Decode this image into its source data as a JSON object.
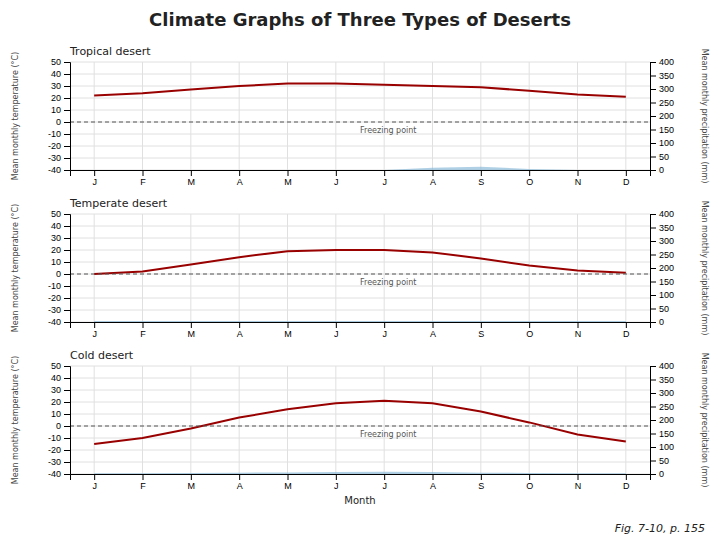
{
  "title": "Climate Graphs of Three Types of Deserts",
  "caption": "Fig. 7-10, p. 155",
  "chart_data": [
    {
      "type": "line",
      "title": "Tropical desert",
      "categories": [
        "J",
        "F",
        "M",
        "A",
        "M",
        "J",
        "J",
        "A",
        "S",
        "O",
        "N",
        "D"
      ],
      "ylabel": "Mean monthly temperature (°C)",
      "y2label": "Mean monthly precipitation (mm)",
      "ylim": [
        -40,
        50
      ],
      "yticks": [
        -40,
        -30,
        -20,
        -10,
        0,
        10,
        20,
        30,
        40,
        50
      ],
      "y2lim": [
        0,
        400
      ],
      "y2ticks": [
        0,
        50,
        100,
        150,
        200,
        250,
        300,
        350,
        400
      ],
      "grid": true,
      "series": [
        {
          "type": "area",
          "axis": "y2",
          "color": "#7ab0d4",
          "values": [
            0,
            0,
            0,
            0,
            0,
            0,
            0,
            8,
            12,
            4,
            0,
            0
          ]
        },
        {
          "type": "line",
          "axis": "y",
          "color": "#990000",
          "values": [
            22,
            24,
            27,
            30,
            32,
            32,
            31,
            30,
            29,
            26,
            23,
            21
          ]
        }
      ],
      "annotations": [
        {
          "text": "Freezing point",
          "y": 0,
          "color": "#555555",
          "line_style": "dashed"
        }
      ]
    },
    {
      "type": "line",
      "title": "Temperate desert",
      "categories": [
        "J",
        "F",
        "M",
        "A",
        "M",
        "J",
        "J",
        "A",
        "S",
        "O",
        "N",
        "D"
      ],
      "ylabel": "Mean monthly temperature (°C)",
      "y2label": "Mean monthly precipitation (mm)",
      "ylim": [
        -40,
        50
      ],
      "yticks": [
        -40,
        -30,
        -20,
        -10,
        0,
        10,
        20,
        30,
        40,
        50
      ],
      "y2lim": [
        0,
        400
      ],
      "y2ticks": [
        0,
        50,
        100,
        150,
        200,
        250,
        300,
        350,
        400
      ],
      "grid": true,
      "series": [
        {
          "type": "area",
          "axis": "y2",
          "color": "#7ab0d4",
          "values": [
            4,
            4,
            4,
            4,
            4,
            4,
            4,
            4,
            4,
            4,
            4,
            4
          ]
        },
        {
          "type": "line",
          "axis": "y",
          "color": "#990000",
          "values": [
            0,
            2,
            8,
            14,
            19,
            20,
            20,
            18,
            13,
            7,
            3,
            1
          ]
        }
      ],
      "annotations": [
        {
          "text": "Freezing point",
          "y": 0,
          "color": "#555555",
          "line_style": "dashed"
        }
      ]
    },
    {
      "type": "line",
      "title": "Cold desert",
      "categories": [
        "J",
        "F",
        "M",
        "A",
        "M",
        "J",
        "J",
        "A",
        "S",
        "O",
        "N",
        "D"
      ],
      "xlabel": "Month",
      "ylabel": "Mean monthly temperature (°C)",
      "y2label": "Mean monthly precipitation (mm)",
      "ylim": [
        -40,
        50
      ],
      "yticks": [
        -40,
        -30,
        -20,
        -10,
        0,
        10,
        20,
        30,
        40,
        50
      ],
      "y2lim": [
        0,
        400
      ],
      "y2ticks": [
        0,
        50,
        100,
        150,
        200,
        250,
        300,
        350,
        400
      ],
      "grid": true,
      "series": [
        {
          "type": "area",
          "axis": "y2",
          "color": "#7ab0d4",
          "values": [
            3,
            3,
            4,
            5,
            6,
            7,
            8,
            7,
            5,
            4,
            3,
            3
          ]
        },
        {
          "type": "line",
          "axis": "y",
          "color": "#990000",
          "values": [
            -15,
            -10,
            -2,
            7,
            14,
            19,
            21,
            19,
            12,
            3,
            -7,
            -13
          ]
        }
      ],
      "annotations": [
        {
          "text": "Freezing point",
          "y": 0,
          "color": "#555555",
          "line_style": "dashed"
        }
      ]
    }
  ]
}
